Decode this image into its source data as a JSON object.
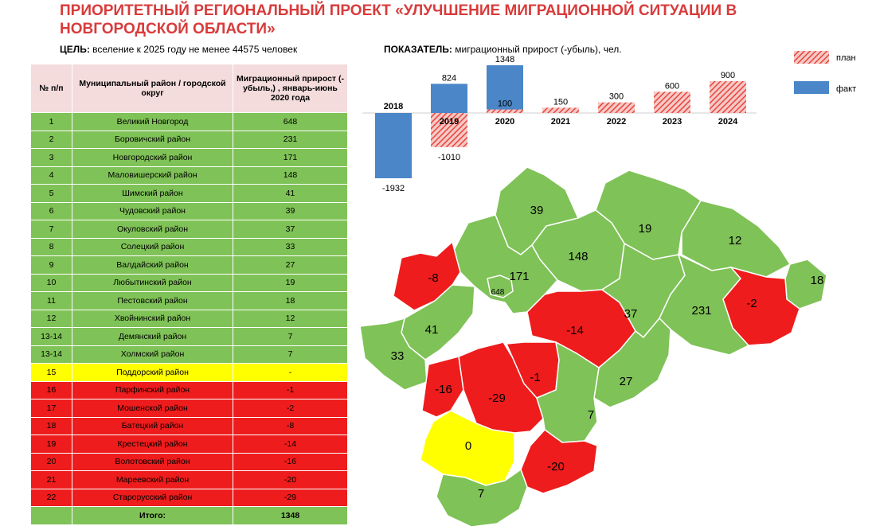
{
  "title": "ПРИОРИТЕТНЫЙ РЕГИОНАЛЬНЫЙ ПРОЕКТ «УЛУЧШЕНИЕ МИГРАЦИОННОЙ СИТУАЦИИ В НОВГОРОДСКОЙ ОБЛАСТИ»",
  "goal": {
    "label": "ЦЕЛЬ:",
    "text": "вселение к 2025 году не менее 44575 человек"
  },
  "indicator": {
    "label": "ПОКАЗАТЕЛЬ:",
    "text": "миграционный прирост (-убыль), чел."
  },
  "table": {
    "headers": [
      "№ п/п",
      "Муниципальный район / городской округ",
      "Миграционный прирост (- убыль,) , январь-июнь 2020 года"
    ],
    "rows": [
      {
        "num": "1",
        "name": "Великий Новгород",
        "value": "648",
        "status": "green"
      },
      {
        "num": "2",
        "name": "Боровичский район",
        "value": "231",
        "status": "green"
      },
      {
        "num": "3",
        "name": "Новгородский район",
        "value": "171",
        "status": "green"
      },
      {
        "num": "4",
        "name": "Маловишерский район",
        "value": "148",
        "status": "green"
      },
      {
        "num": "5",
        "name": "Шимский район",
        "value": "41",
        "status": "green"
      },
      {
        "num": "6",
        "name": "Чудовский район",
        "value": "39",
        "status": "green"
      },
      {
        "num": "7",
        "name": "Окуловский район",
        "value": "37",
        "status": "green"
      },
      {
        "num": "8",
        "name": "Солецкий район",
        "value": "33",
        "status": "green"
      },
      {
        "num": "9",
        "name": "Валдайский район",
        "value": "27",
        "status": "green"
      },
      {
        "num": "10",
        "name": "Любытинский район",
        "value": "19",
        "status": "green"
      },
      {
        "num": "11",
        "name": "Пестовский район",
        "value": "18",
        "status": "green"
      },
      {
        "num": "12",
        "name": "Хвойнинский район",
        "value": "12",
        "status": "green"
      },
      {
        "num": "13-14",
        "name": "Демянский район",
        "value": "7",
        "status": "green"
      },
      {
        "num": "13-14",
        "name": "Холмский район",
        "value": "7",
        "status": "green"
      },
      {
        "num": "15",
        "name": "Поддорский район",
        "value": "-",
        "status": "yellow"
      },
      {
        "num": "16",
        "name": "Парфинский район",
        "value": "-1",
        "status": "red"
      },
      {
        "num": "17",
        "name": "Мошенской район",
        "value": "-2",
        "status": "red"
      },
      {
        "num": "18",
        "name": "Батецкий район",
        "value": "-8",
        "status": "red"
      },
      {
        "num": "19",
        "name": "Крестецкий район",
        "value": "-14",
        "status": "red"
      },
      {
        "num": "20",
        "name": "Волотовский район",
        "value": "-16",
        "status": "red"
      },
      {
        "num": "21",
        "name": "Мареевский район",
        "value": "-20",
        "status": "red"
      },
      {
        "num": "22",
        "name": "Старорусский район",
        "value": "-29",
        "status": "red"
      }
    ],
    "total": {
      "label": "Итого:",
      "value": "1348"
    }
  },
  "chart_data": {
    "type": "bar",
    "categories": [
      "2018",
      "2019",
      "2020",
      "2021",
      "2022",
      "2023",
      "2024"
    ],
    "series": [
      {
        "name": "план",
        "values": [
          null,
          -1010,
          100,
          150,
          300,
          600,
          900
        ],
        "color": "#e8453c",
        "pattern": "hatched"
      },
      {
        "name": "факт",
        "values": [
          -1932,
          824,
          1348,
          null,
          null,
          null,
          null
        ],
        "color": "#4a86c8"
      }
    ],
    "data_labels": {
      "plan": [
        "",
        "-1010",
        "100",
        "150",
        "300",
        "600",
        "900"
      ],
      "fact": [
        "-1932",
        "824",
        "1348",
        "",
        "",
        "",
        ""
      ]
    },
    "legend": [
      "план",
      "факт"
    ],
    "legend_position": "top-right",
    "ylim": [
      -1932,
      1348
    ]
  },
  "map": {
    "districts": [
      {
        "name": "Чудовский",
        "value": "39",
        "status": "green"
      },
      {
        "name": "Любытинский",
        "value": "19",
        "status": "green"
      },
      {
        "name": "Хвойнинский",
        "value": "12",
        "status": "green"
      },
      {
        "name": "Пестовский",
        "value": "18",
        "status": "green"
      },
      {
        "name": "Маловишерский",
        "value": "148",
        "status": "green"
      },
      {
        "name": "Новгородский",
        "value": "171",
        "status": "green"
      },
      {
        "name": "Великий Новгород",
        "value": "648",
        "status": "green"
      },
      {
        "name": "Батецкий",
        "value": "-8",
        "status": "red"
      },
      {
        "name": "Шимский",
        "value": "41",
        "status": "green"
      },
      {
        "name": "Солецкий",
        "value": "33",
        "status": "green"
      },
      {
        "name": "Крестецкий",
        "value": "-14",
        "status": "red"
      },
      {
        "name": "Окуловский",
        "value": "37",
        "status": "green"
      },
      {
        "name": "Боровичский",
        "value": "231",
        "status": "green"
      },
      {
        "name": "Мошенской",
        "value": "-2",
        "status": "red"
      },
      {
        "name": "Волотовский",
        "value": "-16",
        "status": "red"
      },
      {
        "name": "Старорусский",
        "value": "-29",
        "status": "red"
      },
      {
        "name": "Парфинский",
        "value": "-1",
        "status": "red"
      },
      {
        "name": "Валдайский",
        "value": "27",
        "status": "green"
      },
      {
        "name": "Демянский",
        "value": "7",
        "status": "green"
      },
      {
        "name": "Поддорский",
        "value": "0",
        "status": "yellow"
      },
      {
        "name": "Мареевский",
        "value": "-20",
        "status": "red"
      },
      {
        "name": "Холмский",
        "value": "7",
        "status": "green"
      }
    ],
    "colors": {
      "green": "#7fc257",
      "red": "#ee1c1c",
      "yellow": "#ffff00"
    }
  }
}
